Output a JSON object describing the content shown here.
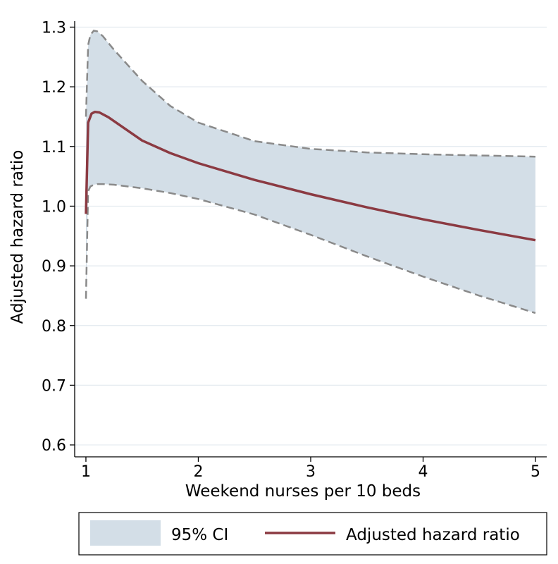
{
  "chart_data": {
    "type": "line",
    "xlabel": "Weekend nurses per 10 beds",
    "ylabel": "Adjusted hazard ratio",
    "xlim": [
      0.9,
      5.1
    ],
    "ylim": [
      0.58,
      1.31
    ],
    "xticks": [
      1,
      2,
      3,
      4,
      5
    ],
    "yticks": [
      0.6,
      0.7,
      0.8,
      0.9,
      1.0,
      1.1,
      1.2,
      1.3
    ],
    "ytick_labels": [
      "0.6",
      "0.7",
      "0.8",
      "0.9",
      "1.0",
      "1.1",
      "1.2",
      "1.3"
    ],
    "grid": "horizontal",
    "legend_position": "bottom",
    "series": [
      {
        "name": "Adjusted hazard ratio",
        "color": "#8b3a42",
        "x": [
          1.0,
          1.02,
          1.05,
          1.08,
          1.12,
          1.2,
          1.3,
          1.5,
          1.75,
          2.0,
          2.5,
          3.0,
          3.5,
          4.0,
          4.5,
          5.0
        ],
        "y": [
          0.987,
          1.14,
          1.155,
          1.158,
          1.157,
          1.149,
          1.136,
          1.11,
          1.089,
          1.072,
          1.044,
          1.02,
          0.998,
          0.978,
          0.96,
          0.943
        ]
      }
    ],
    "ci": {
      "name": "95% CI",
      "fill": "#d3dee7",
      "line_color": "#8a8a8a",
      "x": [
        1.0,
        1.02,
        1.04,
        1.07,
        1.1,
        1.15,
        1.25,
        1.5,
        1.75,
        2.0,
        2.5,
        3.0,
        3.5,
        4.0,
        4.5,
        5.0
      ],
      "upper": [
        1.15,
        1.27,
        1.287,
        1.294,
        1.293,
        1.285,
        1.262,
        1.21,
        1.168,
        1.14,
        1.109,
        1.096,
        1.09,
        1.087,
        1.085,
        1.083
      ],
      "lower": [
        0.845,
        1.025,
        1.033,
        1.036,
        1.037,
        1.037,
        1.036,
        1.03,
        1.022,
        1.012,
        0.986,
        0.952,
        0.916,
        0.882,
        0.85,
        0.821
      ]
    }
  }
}
